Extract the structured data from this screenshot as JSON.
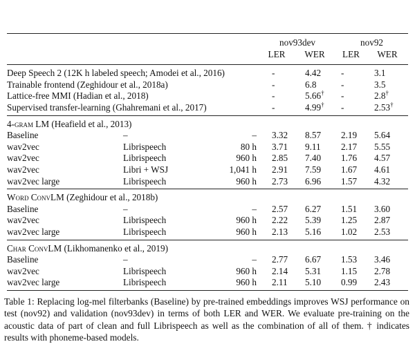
{
  "table": {
    "groups": [
      "nov93dev",
      "nov92"
    ],
    "metrics": [
      "LER",
      "WER",
      "LER",
      "WER"
    ],
    "top_rows": [
      {
        "name": "Deep Speech 2 (12K h labeled speech; Amodei et al., 2016)",
        "cells": [
          "-",
          "4.42",
          "-",
          "3.1"
        ]
      },
      {
        "name": "Trainable frontend (Zeghidour et al., 2018a)",
        "cells": [
          "-",
          "6.8",
          "-",
          "3.5"
        ]
      },
      {
        "name": "Lattice-free MMI (Hadian et al., 2018)",
        "cells": [
          "-",
          {
            "text": "5.66",
            "sup": "†"
          },
          "-",
          {
            "text": "2.8",
            "sup": "†"
          }
        ]
      },
      {
        "name": "Supervised transfer-learning (Ghahremani et al., 2017)",
        "cells": [
          "-",
          {
            "text": "4.99",
            "sup": "†"
          },
          "-",
          {
            "text": "2.53",
            "sup": "†"
          }
        ]
      }
    ],
    "sections": [
      {
        "lm": "4-gram LM",
        "cite": "(Heafield et al., 2013)",
        "rows": [
          [
            "Baseline",
            "–",
            "–",
            "3.32",
            "8.57",
            "2.19",
            "5.64"
          ],
          [
            "wav2vec",
            "Librispeech",
            "80 h",
            "3.71",
            "9.11",
            "2.17",
            "5.55"
          ],
          [
            "wav2vec",
            "Librispeech",
            "960 h",
            "2.85",
            "7.40",
            "1.76",
            "4.57"
          ],
          [
            "wav2vec",
            "Libri + WSJ",
            "1,041 h",
            "2.91",
            "7.59",
            "1.67",
            "4.61"
          ],
          [
            "wav2vec large",
            "Librispeech",
            "960 h",
            "2.73",
            "6.96",
            "1.57",
            "4.32"
          ]
        ]
      },
      {
        "lm": "Word ConvLM",
        "cite": "(Zeghidour et al., 2018b)",
        "rows": [
          [
            "Baseline",
            "–",
            "–",
            "2.57",
            "6.27",
            "1.51",
            "3.60"
          ],
          [
            "wav2vec",
            "Librispeech",
            "960 h",
            "2.22",
            "5.39",
            "1.25",
            "2.87"
          ],
          [
            "wav2vec large",
            "Librispeech",
            "960 h",
            "2.13",
            "5.16",
            "1.02",
            "2.53"
          ]
        ]
      },
      {
        "lm": "Char ConvLM",
        "cite": "(Likhomanenko et al., 2019)",
        "rows": [
          [
            "Baseline",
            "–",
            "–",
            "2.77",
            "6.67",
            "1.53",
            "3.46"
          ],
          [
            "wav2vec",
            "Librispeech",
            "960 h",
            "2.14",
            "5.31",
            "1.15",
            "2.78"
          ],
          [
            "wav2vec large",
            "Librispeech",
            "960 h",
            "2.11",
            "5.10",
            "0.99",
            "2.43"
          ]
        ]
      }
    ],
    "caption": "Table 1: Replacing log-mel filterbanks (Baseline) by pre-trained embeddings improves WSJ performance on test (nov92) and validation (nov93dev) in terms of both LER and WER. We evaluate pre-training on the acoustic data of part of clean and full Librispeech as well as the combination of all of them. † indicates results with phoneme-based models."
  }
}
